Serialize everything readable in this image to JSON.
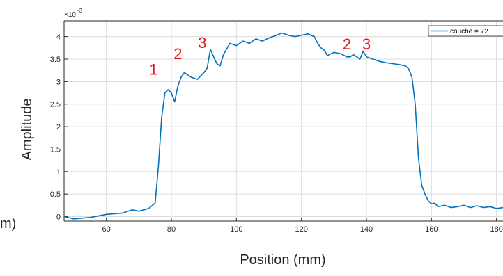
{
  "chart_data": {
    "type": "line",
    "xlabel": "Position (mm)",
    "ylabel": "Amplitude",
    "y_exponent_prefix": "×10",
    "y_exponent": "-3",
    "xlim": [
      47,
      182
    ],
    "ylim": [
      -0.1,
      4.35
    ],
    "grid": true,
    "x_ticks": [
      60,
      80,
      100,
      120,
      140,
      160,
      180
    ],
    "x_tick_labels": [
      "60",
      "80",
      "100",
      "120",
      "140",
      "160",
      "180"
    ],
    "y_ticks": [
      0,
      0.5,
      1,
      1.5,
      2,
      2.5,
      3,
      3.5,
      4
    ],
    "y_tick_labels": [
      "0",
      "0.5",
      "1",
      "1.5",
      "2",
      "2.5",
      "3",
      "3.5",
      "4"
    ],
    "legend_position": "top-right",
    "series": [
      {
        "name": "couche = 72",
        "color": "#0072bd",
        "x": [
          47,
          50,
          55,
          60,
          65,
          68,
          70,
          73,
          75,
          76,
          77,
          78,
          79,
          80,
          81,
          82,
          83,
          84,
          85,
          86,
          88,
          90,
          91,
          92,
          93,
          94,
          95,
          96,
          98,
          100,
          102,
          104,
          106,
          108,
          110,
          112,
          114,
          116,
          118,
          120,
          122,
          124,
          125,
          126,
          127,
          128,
          130,
          132,
          134,
          135,
          136,
          138,
          139,
          140,
          142,
          144,
          146,
          148,
          150,
          152,
          153,
          154,
          155,
          156,
          157,
          158,
          159,
          160,
          161,
          162,
          164,
          166,
          168,
          170,
          172,
          174,
          176,
          178,
          180,
          182
        ],
        "values": [
          0.0,
          -0.05,
          -0.02,
          0.05,
          0.08,
          0.15,
          0.12,
          0.18,
          0.3,
          1.1,
          2.2,
          2.75,
          2.82,
          2.75,
          2.55,
          2.9,
          3.1,
          3.2,
          3.15,
          3.1,
          3.05,
          3.2,
          3.3,
          3.72,
          3.55,
          3.4,
          3.35,
          3.6,
          3.85,
          3.8,
          3.9,
          3.85,
          3.95,
          3.9,
          3.97,
          4.02,
          4.08,
          4.03,
          4.0,
          4.03,
          4.06,
          4.0,
          3.85,
          3.75,
          3.7,
          3.58,
          3.65,
          3.62,
          3.55,
          3.55,
          3.6,
          3.5,
          3.68,
          3.55,
          3.5,
          3.45,
          3.42,
          3.4,
          3.38,
          3.35,
          3.28,
          3.1,
          2.5,
          1.3,
          0.7,
          0.5,
          0.35,
          0.28,
          0.3,
          0.22,
          0.25,
          0.2,
          0.22,
          0.25,
          0.2,
          0.24,
          0.2,
          0.22,
          0.18,
          0.2
        ]
      }
    ],
    "annotations": [
      {
        "text": "1",
        "x": 74.5,
        "y": 3.15
      },
      {
        "text": "2",
        "x": 82.0,
        "y": 3.5
      },
      {
        "text": "3",
        "x": 89.5,
        "y": 3.75
      },
      {
        "text": "2",
        "x": 134.0,
        "y": 3.72
      },
      {
        "text": "3",
        "x": 140.0,
        "y": 3.72
      }
    ]
  },
  "edge_fragment": "m)"
}
